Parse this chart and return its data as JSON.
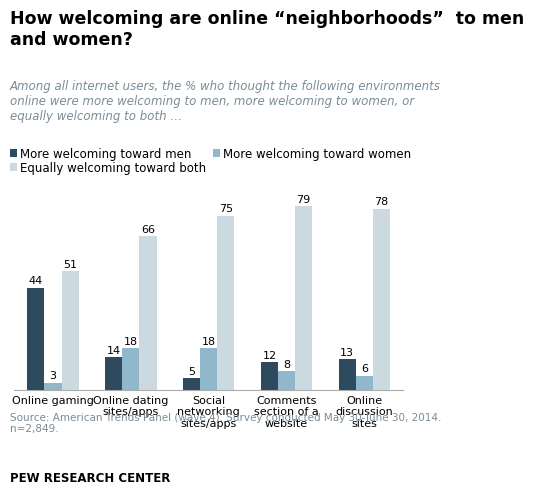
{
  "title": "How welcoming are online “neighborhoods”  to men\nand women?",
  "subtitle": "Among all internet users, the % who thought the following environments\nonline were more welcoming to men, more welcoming to women, or\nequally welcoming to both …",
  "categories": [
    "Online gaming",
    "Online dating\nsites/apps",
    "Social\nnetworking\nsites/apps",
    "Comments\nsection of a\nwebsite",
    "Online\ndiscussion\nsites"
  ],
  "series": {
    "men": [
      44,
      14,
      5,
      12,
      13
    ],
    "women": [
      3,
      18,
      18,
      8,
      6
    ],
    "both": [
      51,
      66,
      75,
      79,
      78
    ]
  },
  "colors": {
    "men": "#2d4a5e",
    "women": "#8fb8cc",
    "both": "#cdd9e0"
  },
  "legend_labels": [
    "More welcoming toward men",
    "More welcoming toward women",
    "Equally welcoming toward both"
  ],
  "source": "Source: American Trends Panel (wave 4). Survey conducted May 30-June 30, 2014.\nn=2,849.",
  "footer": "PEW RESEARCH CENTER",
  "ylim": [
    0,
    90
  ],
  "bar_width": 0.22,
  "title_fontsize": 12.5,
  "subtitle_fontsize": 8.5,
  "tick_fontsize": 8,
  "label_fontsize": 8,
  "legend_fontsize": 8.5,
  "source_fontsize": 7.5
}
